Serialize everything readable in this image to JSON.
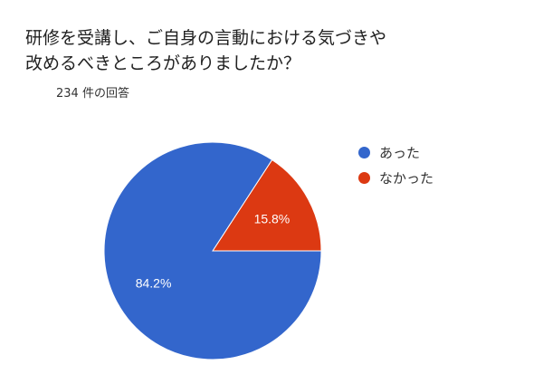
{
  "question": {
    "line1": "研修を受講し、ご自身の言動における気づきや",
    "line2": "改めるべきところがありましたか？"
  },
  "response_count": "234 件の回答",
  "chart_data": {
    "type": "pie",
    "categories": [
      "あった",
      "なかった"
    ],
    "values": [
      84.2,
      15.8
    ],
    "labels": [
      "84.2%",
      "15.8%"
    ],
    "colors": [
      "#3366CC",
      "#DC3912"
    ],
    "legend_position": "right"
  }
}
